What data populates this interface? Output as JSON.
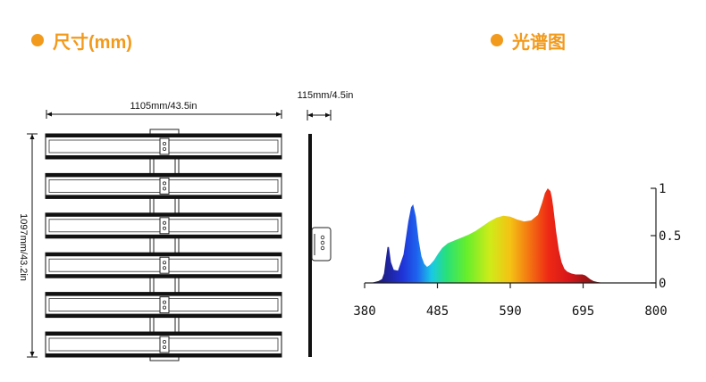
{
  "dimensions_section": {
    "title": "尺寸(mm)",
    "width_label": "1105mm/43.5in",
    "height_label": "1097mm/43.2in",
    "depth_label": "115mm/4.5in",
    "bar_count": 6
  },
  "spectrum_section": {
    "title": "光谱图"
  },
  "colors": {
    "accent": "#f29a1c"
  },
  "chart_data": {
    "type": "area",
    "title": "",
    "xlabel": "",
    "ylabel": "",
    "x_ticks": [
      380,
      485,
      590,
      695,
      800
    ],
    "y_ticks": [
      0,
      0.5,
      1
    ],
    "y_tick_labels": [
      "0",
      "0.5",
      "1"
    ],
    "xlim": [
      380,
      800
    ],
    "ylim": [
      0,
      1
    ],
    "legend": "none",
    "grid": false,
    "series": [
      {
        "x": [
          389,
          395,
          400,
          405,
          408,
          410,
          413,
          415,
          418,
          422,
          428,
          436,
          443,
          447,
          450,
          454,
          458,
          462,
          466,
          470,
          474,
          480,
          486,
          492,
          500,
          510,
          520,
          530,
          540,
          550,
          560,
          570,
          580,
          590,
          600,
          610,
          620,
          630,
          636,
          640,
          644,
          648,
          650,
          652,
          656,
          660,
          664,
          668,
          672,
          678,
          684,
          690,
          694,
          698,
          700,
          705,
          710,
          715,
          720,
          725,
          730,
          735,
          740,
          750,
          760,
          770,
          780
        ],
        "y": [
          0.0,
          0.01,
          0.02,
          0.04,
          0.1,
          0.22,
          0.38,
          0.38,
          0.22,
          0.14,
          0.13,
          0.3,
          0.65,
          0.8,
          0.83,
          0.7,
          0.45,
          0.28,
          0.2,
          0.17,
          0.19,
          0.24,
          0.31,
          0.37,
          0.42,
          0.45,
          0.48,
          0.51,
          0.55,
          0.6,
          0.65,
          0.69,
          0.71,
          0.7,
          0.67,
          0.65,
          0.66,
          0.72,
          0.85,
          0.95,
          1.0,
          0.97,
          0.9,
          0.8,
          0.55,
          0.35,
          0.22,
          0.15,
          0.12,
          0.1,
          0.09,
          0.09,
          0.09,
          0.08,
          0.07,
          0.04,
          0.02,
          0.01,
          0.005,
          0.002,
          0.001,
          0.0,
          0.0,
          0.0,
          0.0,
          0.0,
          0.0
        ]
      }
    ]
  }
}
